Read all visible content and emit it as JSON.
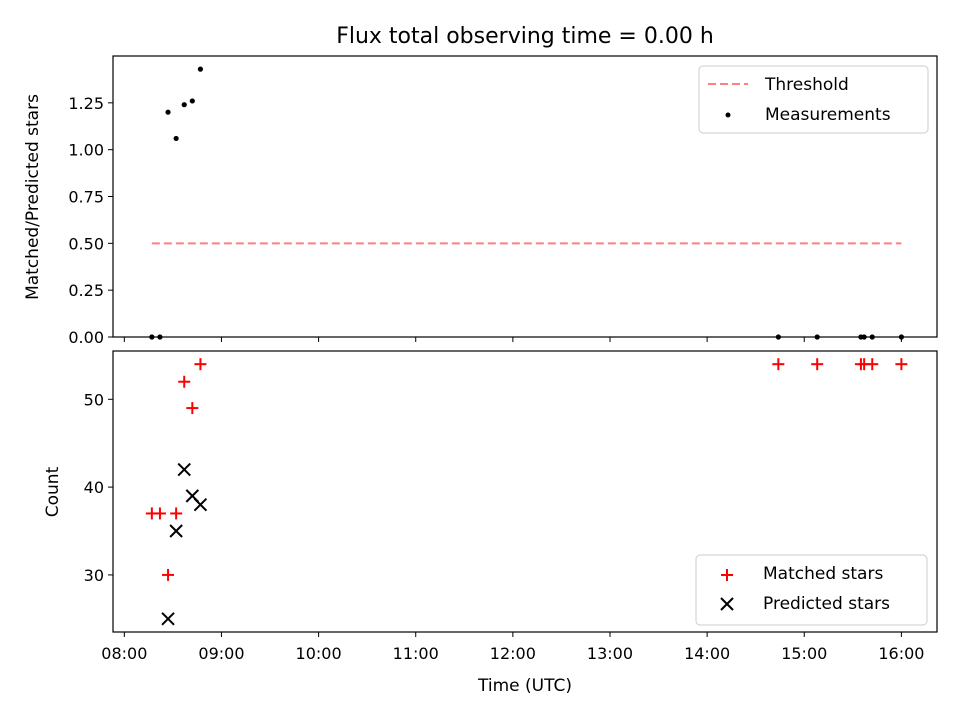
{
  "title": "Flux total observing time = 0.00 h",
  "colors": {
    "threshold": "#ff7f7f",
    "measurements": "#000000",
    "matched": "#ff0000",
    "predicted": "#000000"
  },
  "chart_data": [
    {
      "type": "scatter",
      "panel": "top",
      "title": "Flux total observing time = 0.00 h",
      "xlabel": "",
      "ylabel": "Matched/Predicted stars",
      "xlim": [
        "07:53",
        "16:22"
      ],
      "ylim": [
        0,
        1.5
      ],
      "yticks": [
        0.0,
        0.25,
        0.5,
        0.75,
        1.0,
        1.25
      ],
      "ytick_labels": [
        "0.00",
        "0.25",
        "0.50",
        "0.75",
        "1.00",
        "1.25"
      ],
      "legend_position": "top-right",
      "series": [
        {
          "name": "Threshold",
          "kind": "line",
          "style": "dashed",
          "x": [
            "08:17",
            "16:00"
          ],
          "y": [
            0.5,
            0.5
          ]
        },
        {
          "name": "Measurements",
          "kind": "scatter",
          "marker": "dot",
          "x": [
            "08:17",
            "08:22",
            "08:27",
            "08:32",
            "08:37",
            "08:42",
            "08:47",
            "14:44",
            "15:08",
            "15:35",
            "15:37",
            "15:42",
            "16:00"
          ],
          "y": [
            0.0,
            0.0,
            1.2,
            1.06,
            1.24,
            1.26,
            1.43,
            0.0,
            0.0,
            0.0,
            0.0,
            0.0,
            0.0
          ]
        }
      ]
    },
    {
      "type": "scatter",
      "panel": "bottom",
      "xlabel": "Time (UTC)",
      "ylabel": "Count",
      "xlim": [
        "07:53",
        "16:22"
      ],
      "ylim": [
        23.5,
        55.5
      ],
      "xticks": [
        "08:00",
        "09:00",
        "10:00",
        "11:00",
        "12:00",
        "13:00",
        "14:00",
        "15:00",
        "16:00"
      ],
      "yticks": [
        30,
        40,
        50
      ],
      "ytick_labels": [
        "30",
        "40",
        "50"
      ],
      "legend_position": "bottom-right",
      "series": [
        {
          "name": "Matched stars",
          "marker": "plus",
          "x": [
            "08:17",
            "08:22",
            "08:27",
            "08:32",
            "08:37",
            "08:42",
            "08:47",
            "14:44",
            "15:08",
            "15:35",
            "15:37",
            "15:42",
            "16:00"
          ],
          "y": [
            37,
            37,
            30,
            37,
            52,
            49,
            54,
            54,
            54,
            54,
            54,
            54,
            54
          ]
        },
        {
          "name": "Predicted stars",
          "marker": "x",
          "x": [
            "08:27",
            "08:32",
            "08:37",
            "08:42",
            "08:47"
          ],
          "y": [
            25,
            35,
            42,
            39,
            38
          ]
        }
      ]
    }
  ]
}
